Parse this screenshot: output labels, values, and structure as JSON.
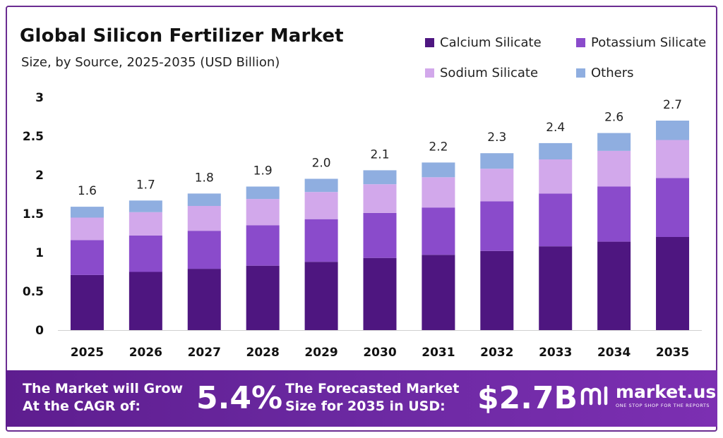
{
  "header": {
    "title": "Global Silicon Fertilizer Market",
    "subtitle": "Size, by Source, 2025-2035 (USD Billion)"
  },
  "colors": {
    "calcium": "#4e1680",
    "potassium": "#8a4bcb",
    "sodium": "#d2a8eb",
    "others": "#8faee0",
    "brand": "#6a2c91"
  },
  "chart_data": {
    "type": "bar",
    "stacked": true,
    "title": "Global Silicon Fertilizer Market",
    "subtitle": "Size, by Source, 2025-2035 (USD Billion)",
    "xlabel": "",
    "ylabel": "",
    "ylim": [
      0,
      3
    ],
    "yticks": [
      "0",
      "0.5",
      "1",
      "1.5",
      "2",
      "2.5",
      "3"
    ],
    "categories": [
      "2025",
      "2026",
      "2027",
      "2028",
      "2029",
      "2030",
      "2031",
      "2032",
      "2033",
      "2034",
      "2035"
    ],
    "series": [
      {
        "name": "Calcium Silicate",
        "color": "#4e1680",
        "values": [
          0.71,
          0.75,
          0.79,
          0.83,
          0.88,
          0.93,
          0.97,
          1.02,
          1.08,
          1.14,
          1.2
        ]
      },
      {
        "name": "Potassium Silicate",
        "color": "#8a4bcb",
        "values": [
          0.45,
          0.47,
          0.49,
          0.52,
          0.55,
          0.58,
          0.61,
          0.64,
          0.68,
          0.71,
          0.76
        ]
      },
      {
        "name": "Sodium Silicate",
        "color": "#d2a8eb",
        "values": [
          0.29,
          0.3,
          0.32,
          0.34,
          0.35,
          0.37,
          0.39,
          0.42,
          0.44,
          0.46,
          0.49
        ]
      },
      {
        "name": "Others",
        "color": "#8faee0",
        "values": [
          0.14,
          0.15,
          0.16,
          0.16,
          0.17,
          0.18,
          0.19,
          0.2,
          0.21,
          0.23,
          0.25
        ]
      }
    ],
    "totals": [
      "1.6",
      "1.7",
      "1.8",
      "1.9",
      "2.0",
      "2.1",
      "2.2",
      "2.3",
      "2.4",
      "2.6",
      "2.7"
    ],
    "legend_position": "top-right",
    "grid": false
  },
  "footer": {
    "cagr_label_line1": "The Market will Grow",
    "cagr_label_line2": "At the CAGR of:",
    "cagr_value": "5.4%",
    "forecast_label_line1": "The Forecasted Market",
    "forecast_label_line2": "Size for 2035 in USD:",
    "forecast_value": "$2.7B",
    "brand_name": "market.us",
    "brand_tagline": "ONE STOP SHOP FOR THE REPORTS"
  }
}
